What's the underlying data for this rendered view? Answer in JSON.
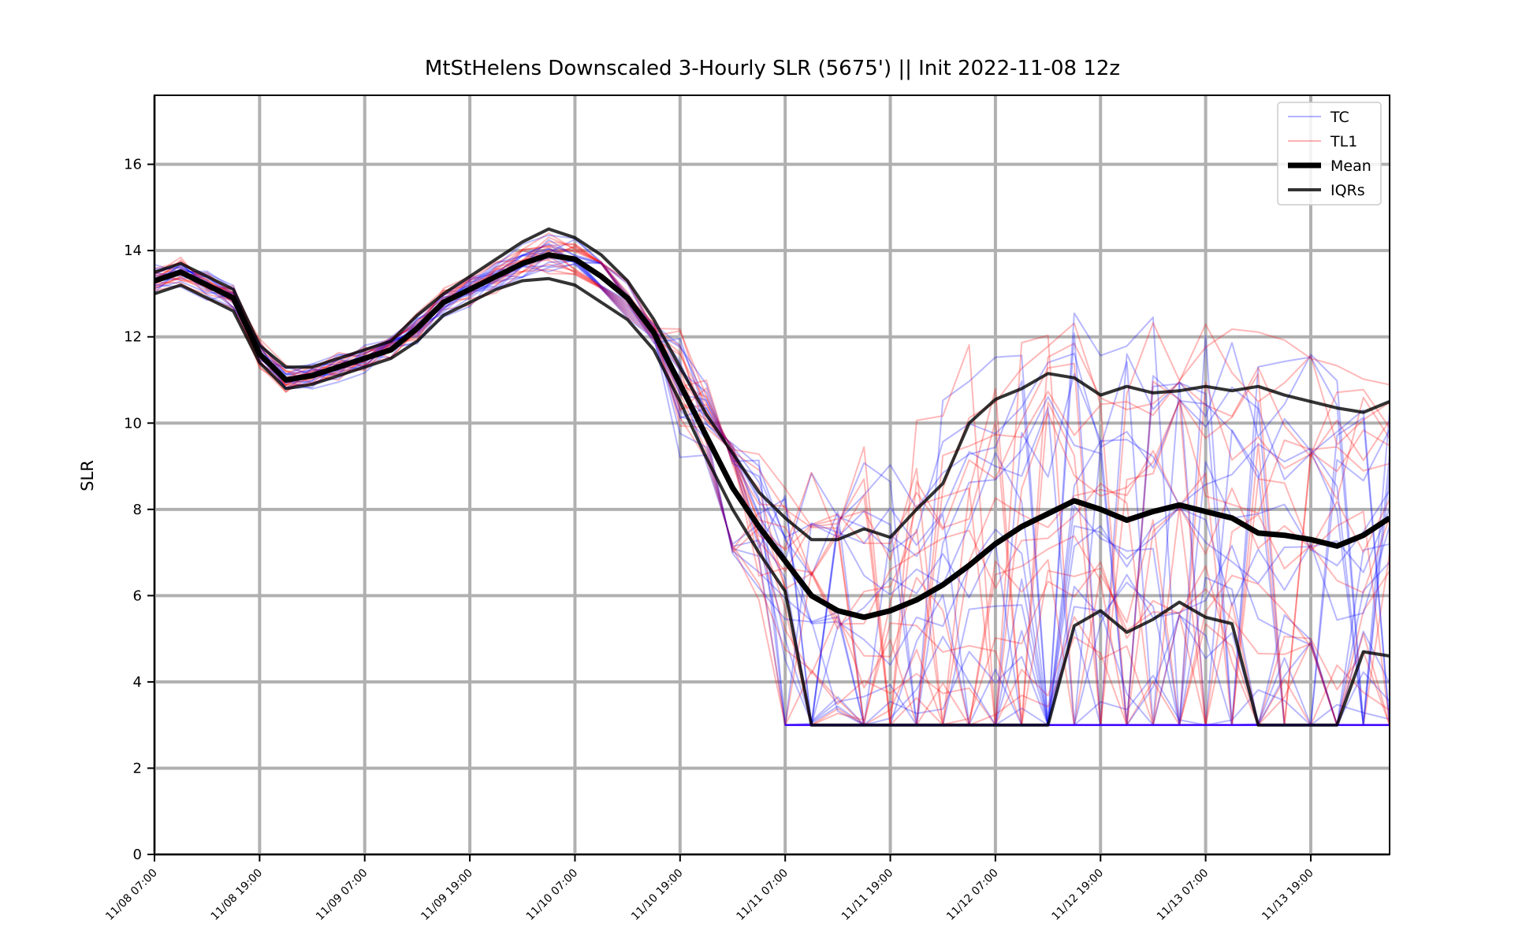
{
  "chart_data": {
    "type": "line",
    "title": "MtStHelens Downscaled 3-Hourly SLR (5675') || Init 2022-11-08 12z",
    "xlabel": "",
    "ylabel": "SLR",
    "ylim": [
      0,
      17.6
    ],
    "yticks": [
      0,
      2,
      4,
      6,
      8,
      10,
      12,
      14,
      16
    ],
    "xlim": [
      0,
      47
    ],
    "x_step_hours": 3,
    "xtick_positions": [
      0,
      4,
      8,
      12,
      16,
      20,
      24,
      28,
      32,
      36,
      40,
      44
    ],
    "xtick_labels": [
      "11/08 07:00",
      "11/08 19:00",
      "11/09 07:00",
      "11/09 19:00",
      "11/10 07:00",
      "11/10 19:00",
      "11/11 07:00",
      "11/11 19:00",
      "11/12 07:00",
      "11/12 19:00",
      "11/13 07:00",
      "11/13 19:00"
    ],
    "grid": true,
    "legend_position": "top-right",
    "legend": [
      {
        "name": "TC",
        "color": "#0000ff",
        "opacity": 0.3,
        "width": 2
      },
      {
        "name": "TL1",
        "color": "#ff0000",
        "opacity": 0.3,
        "width": 2
      },
      {
        "name": "Mean",
        "color": "#000000",
        "opacity": 1,
        "width": 7
      },
      {
        "name": "IQRs",
        "color": "#000000",
        "opacity": 0.8,
        "width": 4
      }
    ],
    "mean": [
      13.3,
      13.5,
      13.2,
      12.9,
      11.6,
      11.0,
      11.1,
      11.3,
      11.5,
      11.7,
      12.2,
      12.8,
      13.1,
      13.4,
      13.7,
      13.9,
      13.8,
      13.4,
      12.9,
      12.1,
      10.9,
      9.7,
      8.5,
      7.6,
      6.8,
      6.0,
      5.65,
      5.5,
      5.65,
      5.9,
      6.25,
      6.7,
      7.2,
      7.6,
      7.9,
      8.2,
      8.0,
      7.75,
      7.95,
      8.1,
      7.95,
      7.8,
      7.45,
      7.4,
      7.3,
      7.15,
      7.4,
      7.8
    ],
    "iqr_upper": [
      13.5,
      13.7,
      13.4,
      13.1,
      11.8,
      11.3,
      11.3,
      11.5,
      11.7,
      11.9,
      12.5,
      13.0,
      13.4,
      13.8,
      14.2,
      14.5,
      14.3,
      13.9,
      13.3,
      12.4,
      11.3,
      10.2,
      9.3,
      8.4,
      7.8,
      7.3,
      7.3,
      7.55,
      7.35,
      8.0,
      8.6,
      10.0,
      10.55,
      10.8,
      11.15,
      11.05,
      10.65,
      10.85,
      10.7,
      10.75,
      10.85,
      10.75,
      10.85,
      10.65,
      10.5,
      10.35,
      10.25,
      10.5
    ],
    "iqr_lower": [
      13.0,
      13.2,
      12.9,
      12.6,
      11.4,
      10.8,
      10.9,
      11.1,
      11.3,
      11.5,
      11.9,
      12.5,
      12.8,
      13.1,
      13.3,
      13.35,
      13.2,
      12.8,
      12.4,
      11.7,
      10.5,
      9.2,
      8.0,
      7.0,
      6.1,
      3.0,
      3.0,
      3.0,
      3.0,
      3.0,
      3.0,
      3.0,
      3.0,
      3.0,
      3.0,
      5.3,
      5.65,
      5.15,
      5.45,
      5.85,
      5.5,
      5.35,
      3.0,
      3.0,
      3.0,
      3.0,
      4.7,
      4.6
    ]
  }
}
